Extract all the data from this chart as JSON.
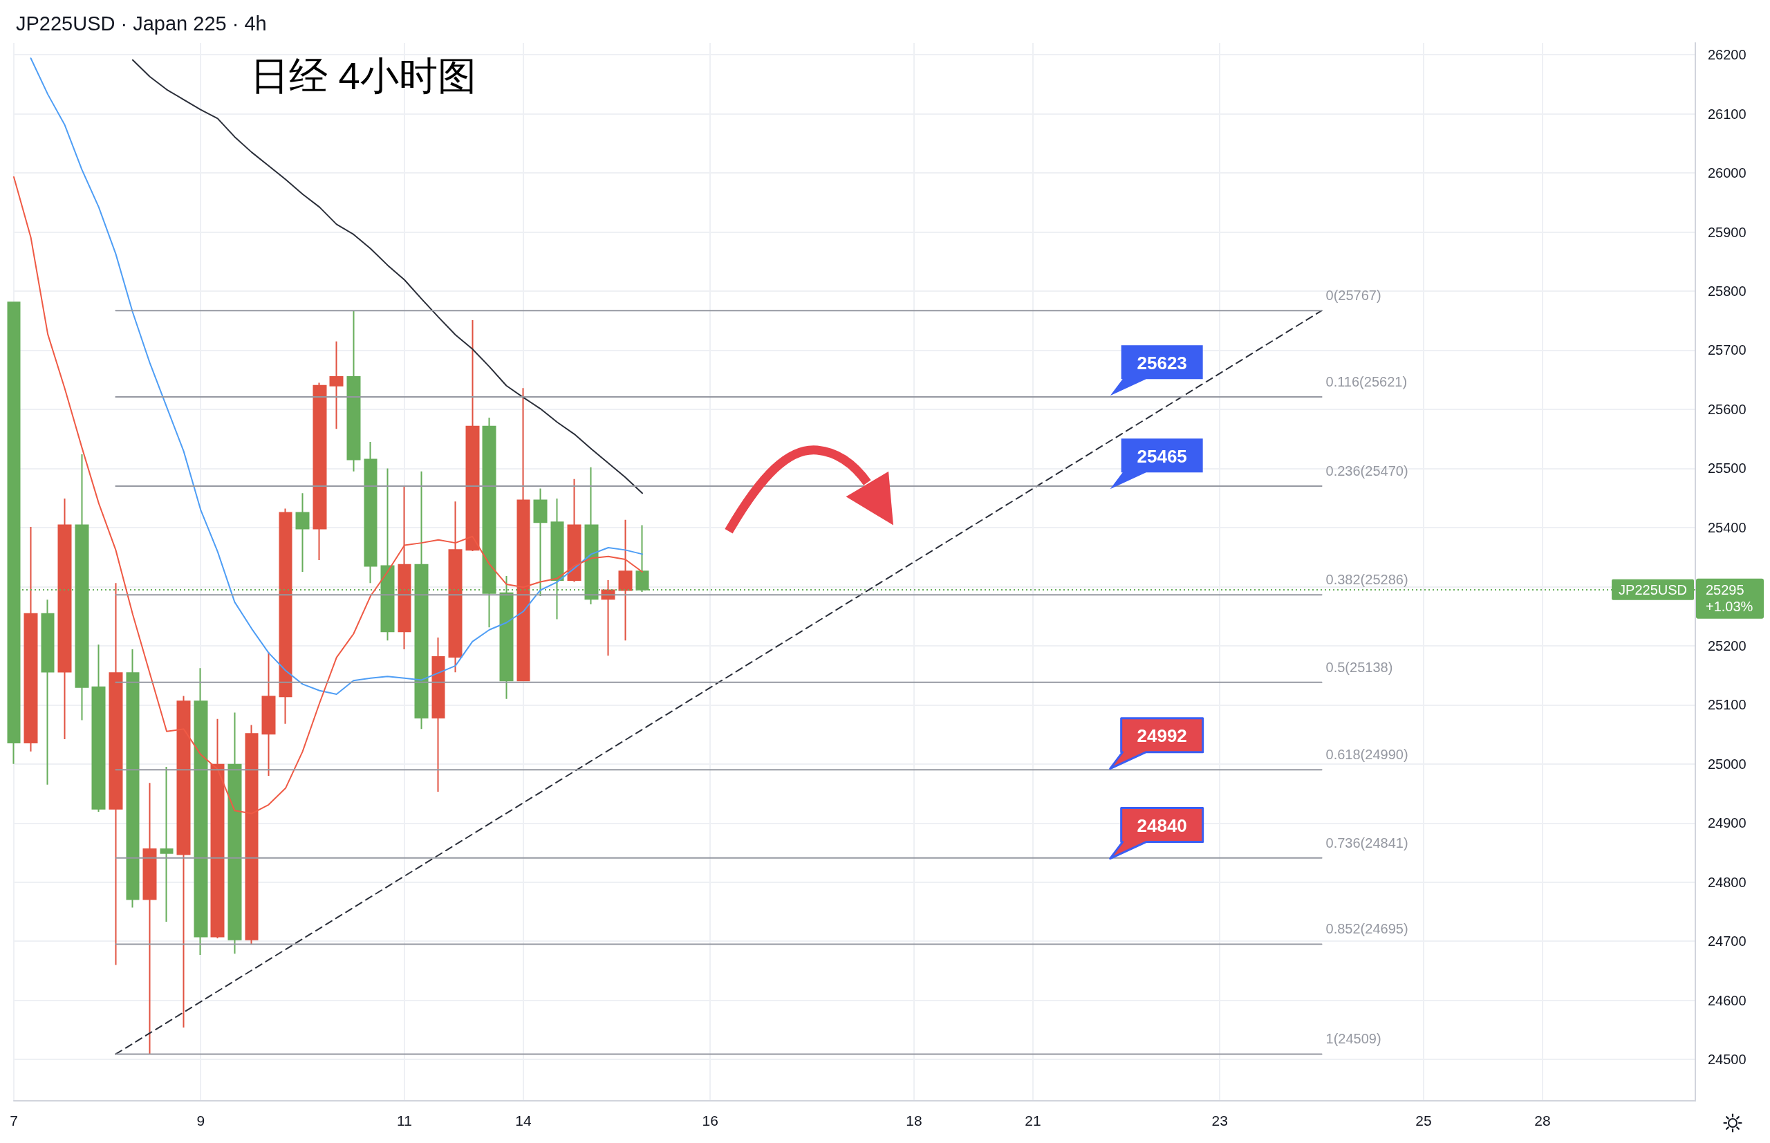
{
  "chart_data": {
    "type": "candlestick",
    "title": "日经 4小时图",
    "subtitle": "JP225USD · Japan 225 · 4h",
    "categories": [
      "7",
      null,
      null,
      null,
      null,
      null,
      null,
      null,
      null,
      null,
      null,
      "9",
      null,
      null,
      null,
      null,
      null,
      null,
      null,
      null,
      null,
      null,
      null,
      "11",
      null,
      null,
      null,
      null,
      null,
      null,
      "14",
      null,
      null,
      null,
      null,
      null,
      null,
      null,
      null,
      null,
      null,
      "16",
      null,
      null,
      null,
      null,
      null,
      null,
      null,
      null,
      null,
      null,
      null,
      "18",
      null,
      null,
      null,
      null,
      null,
      null,
      "21",
      null,
      null,
      null,
      null,
      null,
      null,
      null,
      null,
      null,
      null,
      "23",
      null,
      null,
      null,
      null,
      null,
      null,
      null,
      null,
      null,
      null,
      null,
      "25",
      null,
      null,
      null,
      null,
      null,
      null,
      "28",
      null,
      null,
      null,
      null,
      null,
      null,
      null,
      null,
      null
    ],
    "ohlc": [
      [
        25781,
        25781,
        25000,
        25036
      ],
      [
        25036,
        25401,
        25021,
        25254
      ],
      [
        25254,
        25278,
        24965,
        25156
      ],
      [
        25156,
        25449,
        25042,
        25404
      ],
      [
        25404,
        25524,
        25074,
        25130
      ],
      [
        25130,
        25202,
        24919,
        24924
      ],
      [
        24924,
        25306,
        24660,
        25154
      ],
      [
        25154,
        25194,
        24757,
        24771
      ],
      [
        24771,
        24968,
        24509,
        24856
      ],
      [
        24856,
        24995,
        24733,
        24849
      ],
      [
        24847,
        25115,
        24554,
        25106
      ],
      [
        25106,
        25162,
        24677,
        24708
      ],
      [
        24708,
        25076,
        24705,
        24999
      ],
      [
        24999,
        25087,
        24679,
        24703
      ],
      [
        24703,
        25066,
        24694,
        25051
      ],
      [
        25051,
        25189,
        24980,
        25114
      ],
      [
        25114,
        25432,
        25068,
        25425
      ],
      [
        25425,
        25458,
        25325,
        25398
      ],
      [
        25398,
        25645,
        25345,
        25640
      ],
      [
        25640,
        25715,
        25567,
        25655
      ],
      [
        25655,
        25767,
        25495,
        25515
      ],
      [
        25515,
        25545,
        25306,
        25335
      ],
      [
        25335,
        25500,
        25209,
        25224
      ],
      [
        25224,
        25470,
        25194,
        25337
      ],
      [
        25337,
        25495,
        25059,
        25078
      ],
      [
        25078,
        25214,
        24953,
        25181
      ],
      [
        25181,
        25444,
        25155,
        25362
      ],
      [
        25362,
        25751,
        25360,
        25571
      ],
      [
        25571,
        25586,
        25231,
        25289
      ],
      [
        25289,
        25318,
        25110,
        25141
      ],
      [
        25141,
        25636,
        25140,
        25446
      ],
      [
        25446,
        25466,
        25284,
        25409
      ],
      [
        25409,
        25449,
        25245,
        25311
      ],
      [
        25311,
        25482,
        25308,
        25404
      ],
      [
        25404,
        25502,
        25270,
        25279
      ],
      [
        25279,
        25311,
        25183,
        25294
      ],
      [
        25294,
        25413,
        25209,
        25326
      ],
      [
        25326,
        25404,
        25291,
        25295
      ],
      null,
      null,
      null,
      null,
      null,
      null,
      null,
      null,
      null,
      null,
      null,
      null,
      null,
      null,
      null,
      null,
      null,
      null,
      null,
      null,
      null,
      null,
      null,
      null,
      null,
      null,
      null,
      null,
      null,
      null,
      null,
      null,
      null,
      null,
      null,
      null,
      null,
      null,
      null,
      null,
      null,
      null,
      null,
      null,
      null,
      null,
      null,
      null,
      null,
      null,
      null,
      null,
      null,
      null,
      null,
      null,
      null,
      null,
      null,
      null,
      null,
      null
    ],
    "colors": [
      "#67ad5b",
      "#e15241",
      "#67ad5b",
      "#e15241",
      "#67ad5b",
      "#67ad5b",
      "#e15241",
      "#67ad5b",
      "#e15241",
      "#67ad5b",
      "#e15241",
      "#67ad5b",
      "#e15241",
      "#67ad5b",
      "#e15241",
      "#e15241",
      "#e15241",
      "#67ad5b",
      "#e15241",
      "#e15241",
      "#67ad5b",
      "#67ad5b",
      "#67ad5b",
      "#e15241",
      "#67ad5b",
      "#e15241",
      "#e15241",
      "#e15241",
      "#67ad5b",
      "#67ad5b",
      "#e15241",
      "#67ad5b",
      "#67ad5b",
      "#e15241",
      "#67ad5b",
      "#e15241",
      "#e15241",
      "#67ad5b",
      null,
      null,
      null,
      null,
      null,
      null,
      null,
      null,
      null,
      null,
      null,
      null,
      null,
      null,
      null,
      null,
      null,
      null,
      null,
      null,
      null,
      null,
      null,
      null,
      null,
      null,
      null,
      null,
      null,
      null,
      null,
      null,
      null,
      null,
      null,
      null,
      null,
      null,
      null,
      null,
      null,
      null,
      null,
      null,
      null,
      null,
      null,
      null,
      null,
      null,
      null,
      null,
      null,
      null,
      null,
      null,
      null,
      null,
      null,
      null,
      null,
      null
    ],
    "series": [
      {
        "type": "line",
        "color": "#4f9ef5",
        "values": [
          null,
          26194,
          26133,
          26081,
          26006,
          25942,
          25863,
          25764,
          25679,
          25604,
          25529,
          25430,
          25359,
          25274,
          25229,
          25188,
          25158,
          25135,
          25124,
          25118,
          25141,
          25145,
          25148,
          25145,
          25142,
          25154,
          25166,
          25207,
          25227,
          25239,
          25258,
          25294,
          25308,
          25331,
          25355,
          25366,
          25362,
          25355,
          null,
          null,
          null,
          null,
          null,
          null,
          null,
          null,
          null,
          null,
          null,
          null,
          null,
          null,
          null,
          null,
          null,
          null,
          null,
          null,
          null,
          null,
          null,
          null,
          null,
          null,
          null,
          null,
          null,
          null,
          null,
          null,
          null,
          null,
          null,
          null,
          null,
          null,
          null,
          null,
          null,
          null,
          null,
          null,
          null,
          null,
          null,
          null,
          null,
          null,
          null,
          null,
          null,
          null,
          null,
          null,
          null,
          null,
          null,
          null,
          null,
          null
        ]
      },
      {
        "type": "line",
        "color": "#ef5a45",
        "values": [
          25993,
          25891,
          25727,
          25635,
          25536,
          25441,
          25362,
          25253,
          25154,
          25055,
          25059,
          25016,
          24991,
          24921,
          24916,
          24931,
          24959,
          25021,
          25103,
          25180,
          25220,
          25284,
          25325,
          25370,
          25374,
          25379,
          25374,
          25385,
          25338,
          25304,
          25299,
          25308,
          25314,
          25335,
          25348,
          25351,
          25346,
          25325,
          null,
          null,
          null,
          null,
          null,
          null,
          null,
          null,
          null,
          null,
          null,
          null,
          null,
          null,
          null,
          null,
          null,
          null,
          null,
          null,
          null,
          null,
          null,
          null,
          null,
          null,
          null,
          null,
          null,
          null,
          null,
          null,
          null,
          null,
          null,
          null,
          null,
          null,
          null,
          null,
          null,
          null,
          null,
          null,
          null,
          null,
          null,
          null,
          null,
          null,
          null,
          null,
          null,
          null,
          null,
          null,
          null,
          null,
          null,
          null,
          null,
          null
        ]
      },
      {
        "type": "line",
        "color": "#2a2e39",
        "values": [
          null,
          null,
          null,
          null,
          null,
          null,
          null,
          26191,
          26163,
          26141,
          26124,
          26107,
          26092,
          26061,
          26035,
          26012,
          25989,
          25964,
          25942,
          25913,
          25896,
          25872,
          25844,
          25819,
          25787,
          25756,
          25726,
          25702,
          25672,
          25640,
          25620,
          25601,
          25578,
          25558,
          25533,
          25509,
          25485,
          25458,
          null,
          null,
          null,
          null,
          null,
          null,
          null,
          null,
          null,
          null,
          null,
          null,
          null,
          null,
          null,
          null,
          null,
          null,
          null,
          null,
          null,
          null,
          null,
          null,
          null,
          null,
          null,
          null,
          null,
          null,
          null,
          null,
          null,
          null,
          null,
          null,
          null,
          null,
          null,
          null,
          null,
          null,
          null,
          null,
          null,
          null,
          null,
          null,
          null,
          null,
          null,
          null,
          null,
          null,
          null,
          null,
          null,
          null,
          null,
          null,
          null,
          null
        ]
      },
      {
        "type": "line",
        "color": "#2a2e39",
        "line_style": "dashed",
        "values": [
          null,
          null,
          null,
          null,
          null,
          null,
          24509,
          null,
          null,
          null,
          null,
          null,
          null,
          null,
          null,
          null,
          null,
          null,
          null,
          null,
          null,
          null,
          null,
          null,
          null,
          null,
          null,
          null,
          null,
          null,
          null,
          null,
          null,
          null,
          null,
          null,
          null,
          null,
          null,
          null,
          null,
          null,
          null,
          null,
          null,
          null,
          null,
          null,
          null,
          null,
          null,
          null,
          null,
          null,
          null,
          null,
          null,
          null,
          null,
          null,
          null,
          null,
          null,
          null,
          null,
          null,
          null,
          null,
          null,
          null,
          null,
          null,
          null,
          null,
          null,
          null,
          null,
          25767,
          null,
          null,
          null,
          null,
          null,
          null,
          null,
          null,
          null,
          null,
          null,
          null,
          null,
          null,
          null,
          null,
          null,
          null,
          null,
          null,
          null,
          null
        ]
      },
      {
        "type": "line",
        "name": "0(25767)",
        "color": "#9598a1",
        "values": [
          null,
          null,
          null,
          null,
          null,
          null,
          25767,
          null,
          null,
          null,
          null,
          null,
          null,
          null,
          null,
          null,
          null,
          null,
          null,
          null,
          null,
          null,
          null,
          null,
          null,
          null,
          null,
          null,
          null,
          null,
          null,
          null,
          null,
          null,
          null,
          null,
          null,
          null,
          null,
          null,
          null,
          null,
          null,
          null,
          null,
          null,
          null,
          null,
          null,
          null,
          null,
          null,
          null,
          null,
          null,
          null,
          null,
          null,
          null,
          null,
          null,
          null,
          null,
          null,
          null,
          null,
          null,
          null,
          null,
          null,
          null,
          null,
          null,
          null,
          null,
          null,
          null,
          25767,
          null,
          null,
          null,
          null,
          null,
          null,
          null,
          null,
          null,
          null,
          null,
          null,
          null,
          null,
          null,
          null,
          null,
          null,
          null,
          null,
          null,
          null
        ]
      },
      {
        "type": "line",
        "name": "0.116(25621)",
        "color": "#9598a1",
        "values": [
          null,
          null,
          null,
          null,
          null,
          null,
          25621,
          null,
          null,
          null,
          null,
          null,
          null,
          null,
          null,
          null,
          null,
          null,
          null,
          null,
          null,
          null,
          null,
          null,
          null,
          null,
          null,
          null,
          null,
          null,
          null,
          null,
          null,
          null,
          null,
          null,
          null,
          null,
          null,
          null,
          null,
          null,
          null,
          null,
          null,
          null,
          null,
          null,
          null,
          null,
          null,
          null,
          null,
          null,
          null,
          null,
          null,
          null,
          null,
          null,
          null,
          null,
          null,
          null,
          null,
          null,
          null,
          null,
          null,
          null,
          null,
          null,
          null,
          null,
          null,
          null,
          null,
          25621,
          null,
          null,
          null,
          null,
          null,
          null,
          null,
          null,
          null,
          null,
          null,
          null,
          null,
          null,
          null,
          null,
          null,
          null,
          null,
          null,
          null,
          null
        ]
      },
      {
        "type": "line",
        "name": "0.236(25470)",
        "color": "#9598a1",
        "values": [
          null,
          null,
          null,
          null,
          null,
          null,
          25470,
          null,
          null,
          null,
          null,
          null,
          null,
          null,
          null,
          null,
          null,
          null,
          null,
          null,
          null,
          null,
          null,
          null,
          null,
          null,
          null,
          null,
          null,
          null,
          null,
          null,
          null,
          null,
          null,
          null,
          null,
          null,
          null,
          null,
          null,
          null,
          null,
          null,
          null,
          null,
          null,
          null,
          null,
          null,
          null,
          null,
          null,
          null,
          null,
          null,
          null,
          null,
          null,
          null,
          null,
          null,
          null,
          null,
          null,
          null,
          null,
          null,
          null,
          null,
          null,
          null,
          null,
          null,
          null,
          null,
          null,
          25470,
          null,
          null,
          null,
          null,
          null,
          null,
          null,
          null,
          null,
          null,
          null,
          null,
          null,
          null,
          null,
          null,
          null,
          null,
          null,
          null,
          null,
          null
        ]
      },
      {
        "type": "line",
        "name": "0.382(25286)",
        "color": "#9598a1",
        "values": [
          null,
          null,
          null,
          null,
          null,
          null,
          25286,
          null,
          null,
          null,
          null,
          null,
          null,
          null,
          null,
          null,
          null,
          null,
          null,
          null,
          null,
          null,
          null,
          null,
          null,
          null,
          null,
          null,
          null,
          null,
          null,
          null,
          null,
          null,
          null,
          null,
          null,
          null,
          null,
          null,
          null,
          null,
          null,
          null,
          null,
          null,
          null,
          null,
          null,
          null,
          null,
          null,
          null,
          null,
          null,
          null,
          null,
          null,
          null,
          null,
          null,
          null,
          null,
          null,
          null,
          null,
          null,
          null,
          null,
          null,
          null,
          null,
          null,
          null,
          null,
          null,
          null,
          25286,
          null,
          null,
          null,
          null,
          null,
          null,
          null,
          null,
          null,
          null,
          null,
          null,
          null,
          null,
          null,
          null,
          null,
          null,
          null,
          null,
          null,
          null
        ]
      },
      {
        "type": "line",
        "name": "0.5(25138)",
        "color": "#9598a1",
        "values": [
          null,
          null,
          null,
          null,
          null,
          null,
          25138,
          null,
          null,
          null,
          null,
          null,
          null,
          null,
          null,
          null,
          null,
          null,
          null,
          null,
          null,
          null,
          null,
          null,
          null,
          null,
          null,
          null,
          null,
          null,
          null,
          null,
          null,
          null,
          null,
          null,
          null,
          null,
          null,
          null,
          null,
          null,
          null,
          null,
          null,
          null,
          null,
          null,
          null,
          null,
          null,
          null,
          null,
          null,
          null,
          null,
          null,
          null,
          null,
          null,
          null,
          null,
          null,
          null,
          null,
          null,
          null,
          null,
          null,
          null,
          null,
          null,
          null,
          null,
          null,
          null,
          null,
          25138,
          null,
          null,
          null,
          null,
          null,
          null,
          null,
          null,
          null,
          null,
          null,
          null,
          null,
          null,
          null,
          null,
          null,
          null,
          null,
          null,
          null,
          null
        ]
      },
      {
        "type": "line",
        "name": "0.618(24990)",
        "color": "#9598a1",
        "values": [
          null,
          null,
          null,
          null,
          null,
          null,
          24990,
          null,
          null,
          null,
          null,
          null,
          null,
          null,
          null,
          null,
          null,
          null,
          null,
          null,
          null,
          null,
          null,
          null,
          null,
          null,
          null,
          null,
          null,
          null,
          null,
          null,
          null,
          null,
          null,
          null,
          null,
          null,
          null,
          null,
          null,
          null,
          null,
          null,
          null,
          null,
          null,
          null,
          null,
          null,
          null,
          null,
          null,
          null,
          null,
          null,
          null,
          null,
          null,
          null,
          null,
          null,
          null,
          null,
          null,
          null,
          null,
          null,
          null,
          null,
          null,
          null,
          null,
          null,
          null,
          null,
          null,
          24990,
          null,
          null,
          null,
          null,
          null,
          null,
          null,
          null,
          null,
          null,
          null,
          null,
          null,
          null,
          null,
          null,
          null,
          null,
          null,
          null,
          null,
          null
        ]
      },
      {
        "type": "line",
        "name": "0.736(24841)",
        "color": "#9598a1",
        "values": [
          null,
          null,
          null,
          null,
          null,
          null,
          24841,
          null,
          null,
          null,
          null,
          null,
          null,
          null,
          null,
          null,
          null,
          null,
          null,
          null,
          null,
          null,
          null,
          null,
          null,
          null,
          null,
          null,
          null,
          null,
          null,
          null,
          null,
          null,
          null,
          null,
          null,
          null,
          null,
          null,
          null,
          null,
          null,
          null,
          null,
          null,
          null,
          null,
          null,
          null,
          null,
          null,
          null,
          null,
          null,
          null,
          null,
          null,
          null,
          null,
          null,
          null,
          null,
          null,
          null,
          null,
          null,
          null,
          null,
          null,
          null,
          null,
          null,
          null,
          null,
          null,
          null,
          24841,
          null,
          null,
          null,
          null,
          null,
          null,
          null,
          null,
          null,
          null,
          null,
          null,
          null,
          null,
          null,
          null,
          null,
          null,
          null,
          null,
          null,
          null
        ]
      },
      {
        "type": "line",
        "name": "0.852(24695)",
        "color": "#9598a1",
        "values": [
          null,
          null,
          null,
          null,
          null,
          null,
          24695,
          null,
          null,
          null,
          null,
          null,
          null,
          null,
          null,
          null,
          null,
          null,
          null,
          null,
          null,
          null,
          null,
          null,
          null,
          null,
          null,
          null,
          null,
          null,
          null,
          null,
          null,
          null,
          null,
          null,
          null,
          null,
          null,
          null,
          null,
          null,
          null,
          null,
          null,
          null,
          null,
          null,
          null,
          null,
          null,
          null,
          null,
          null,
          null,
          null,
          null,
          null,
          null,
          null,
          null,
          null,
          null,
          null,
          null,
          null,
          null,
          null,
          null,
          null,
          null,
          null,
          null,
          null,
          null,
          null,
          null,
          24695,
          null,
          null,
          null,
          null,
          null,
          null,
          null,
          null,
          null,
          null,
          null,
          null,
          null,
          null,
          null,
          null,
          null,
          null,
          null,
          null,
          null,
          null
        ]
      },
      {
        "type": "line",
        "name": "1(24509)",
        "color": "#9598a1",
        "values": [
          null,
          null,
          null,
          null,
          null,
          null,
          24509,
          null,
          null,
          null,
          null,
          null,
          null,
          null,
          null,
          null,
          null,
          null,
          null,
          null,
          null,
          null,
          null,
          null,
          null,
          null,
          null,
          null,
          null,
          null,
          null,
          null,
          null,
          null,
          null,
          null,
          null,
          null,
          null,
          null,
          null,
          null,
          null,
          null,
          null,
          null,
          null,
          null,
          null,
          null,
          null,
          null,
          null,
          null,
          null,
          null,
          null,
          null,
          null,
          null,
          null,
          null,
          null,
          null,
          null,
          null,
          null,
          null,
          null,
          null,
          null,
          null,
          null,
          null,
          null,
          null,
          null,
          24509,
          null,
          null,
          null,
          null,
          null,
          null,
          null,
          null,
          null,
          null,
          null,
          null,
          null,
          null,
          null,
          null,
          null,
          null,
          null,
          null,
          null,
          null
        ]
      }
    ],
    "ref_lines": [
      {
        "axis": "y",
        "value": 25295,
        "label": "JP225USD",
        "color": "#67ad5b",
        "line_style": "dotted"
      }
    ],
    "annotations": [
      {
        "text": "25623",
        "y": 25623
      },
      {
        "text": "25465",
        "y": 25465
      },
      {
        "text": "24992",
        "y": 24992
      },
      {
        "text": "24840",
        "y": 24840
      },
      "25295\n+1.03%"
    ],
    "ylim": [
      24430,
      26220
    ],
    "yticks": [
      24500,
      24600,
      24700,
      24800,
      24900,
      25000,
      25100,
      25200,
      {
        "value": 25300,
        "label": null
      },
      25400,
      25500,
      25600,
      25700,
      25800,
      25900,
      26000,
      26100,
      26200
    ],
    "grid": true
  }
}
